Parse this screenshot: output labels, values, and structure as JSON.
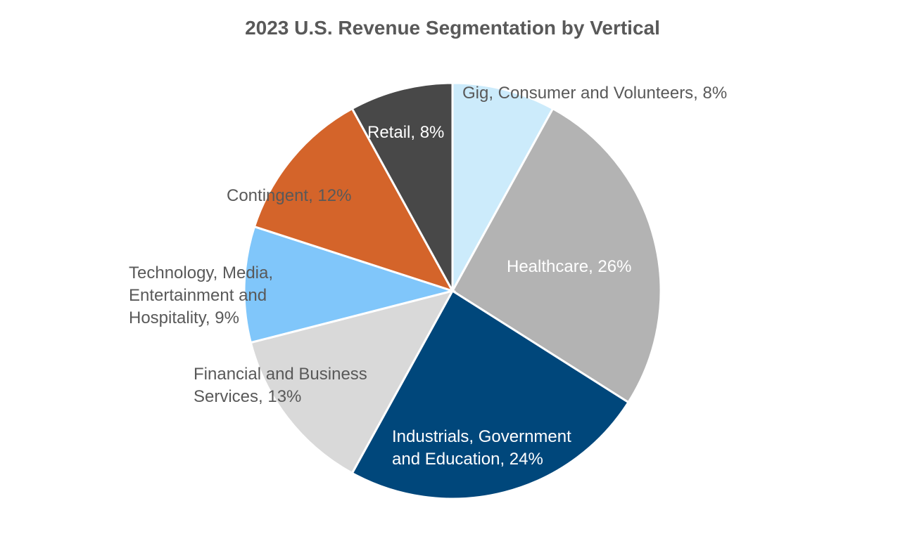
{
  "chart_data": {
    "type": "pie",
    "title": "2023 U.S. Revenue Segmentation by Vertical",
    "slices": [
      {
        "name": "Gig, Consumer and Volunteers",
        "value": 8,
        "color": "#CCEBFB",
        "label_lines": [
          "Gig, Consumer and Volunteers, 8%"
        ],
        "label_color": "#595959"
      },
      {
        "name": "Healthcare",
        "value": 26,
        "color": "#B3B3B3",
        "label_lines": [
          "Healthcare, 26%"
        ],
        "label_color": "#FFFFFF"
      },
      {
        "name": "Industrials, Government and Education",
        "value": 24,
        "color": "#00477B",
        "label_lines": [
          "Industrials, Government",
          "and Education, 24%"
        ],
        "label_color": "#FFFFFF"
      },
      {
        "name": "Financial and Business Services",
        "value": 13,
        "color": "#D9D9D9",
        "label_lines": [
          "Financial and Business",
          "Services, 13%"
        ],
        "label_color": "#595959"
      },
      {
        "name": "Technology, Media, Entertainment and Hospitality",
        "value": 9,
        "color": "#80C6FA",
        "label_lines": [
          "Technology, Media,",
          "Entertainment and",
          "Hospitality, 9%"
        ],
        "label_color": "#595959"
      },
      {
        "name": "Contingent",
        "value": 12,
        "color": "#D4642A",
        "label_lines": [
          "Contingent, 12%"
        ],
        "label_color": "#595959"
      },
      {
        "name": "Retail",
        "value": 8,
        "color": "#484848",
        "label_lines": [
          "Retail, 8%"
        ],
        "label_color": "#FFFFFF"
      }
    ]
  }
}
